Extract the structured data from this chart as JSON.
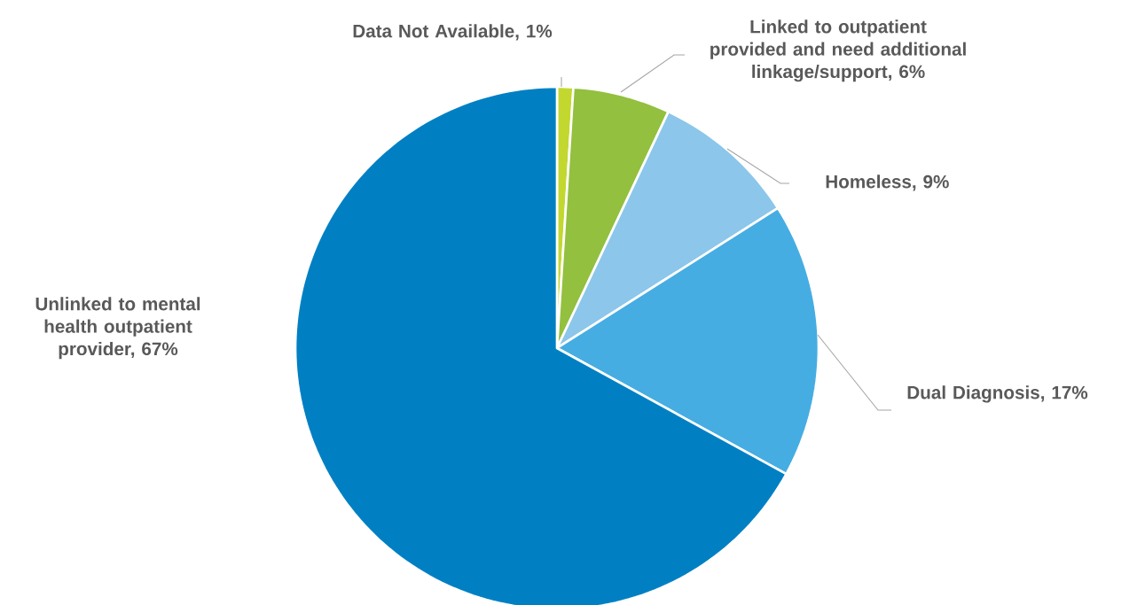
{
  "chart_data": {
    "type": "pie",
    "categories": [
      "Data Not Available, 1%",
      "Linked to outpatient provided and need additional linkage/support, 6%",
      "Homeless, 9%",
      "Dual Diagnosis, 17%",
      "Unlinked to mental health outpatient provider, 67%"
    ],
    "values": [
      1,
      6,
      9,
      17,
      67
    ],
    "colors": [
      "#c2d82f",
      "#93c03e",
      "#8cc6ea",
      "#46ade2",
      "#0080c3"
    ]
  }
}
